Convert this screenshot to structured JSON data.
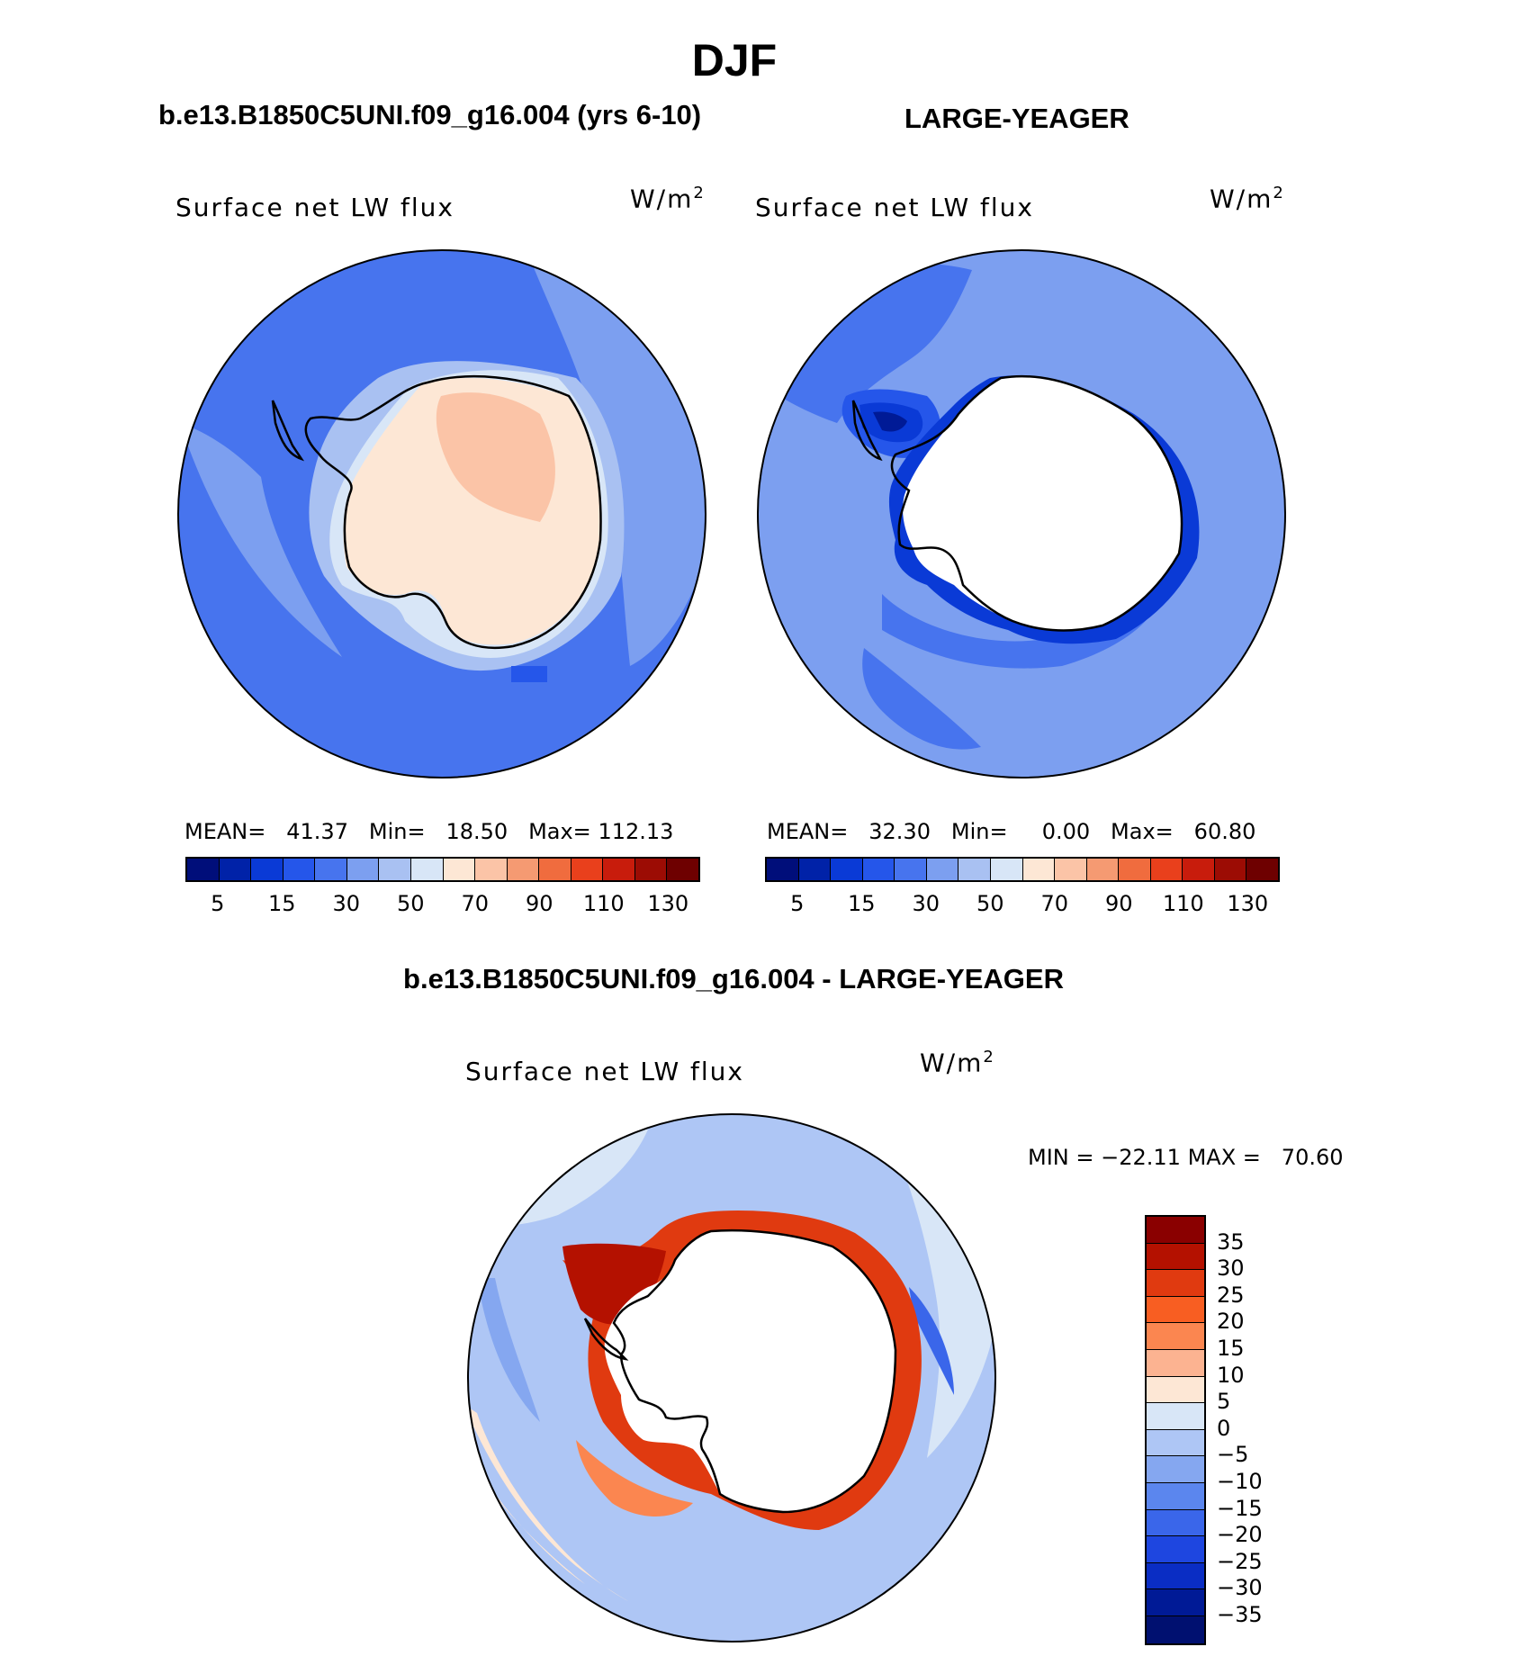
{
  "figure": {
    "title": "DJF"
  },
  "panels": {
    "left": {
      "title": "b.e13.B1850C5UNI.f09_g16.004 (yrs 6-10)",
      "variable": "Surface net LW flux",
      "units": "W/m",
      "units_exp": "2",
      "mean_label": "MEAN=",
      "mean_value": "41.37",
      "min_label": "Min=",
      "min_value": "18.50",
      "max_label": "Max=",
      "max_value": "112.13"
    },
    "right": {
      "title": "LARGE-YEAGER",
      "variable": "Surface net LW flux",
      "units": "W/m",
      "units_exp": "2",
      "mean_label": "MEAN=",
      "mean_value": "32.30",
      "min_label": "Min=",
      "min_value": "0.00",
      "max_label": "Max=",
      "max_value": "60.80"
    },
    "diff": {
      "title": "b.e13.B1850C5UNI.f09_g16.004 - LARGE-YEAGER",
      "variable": "Surface net LW flux",
      "units": "W/m",
      "units_exp": "2",
      "min_label": "MIN =",
      "min_value": "−22.11",
      "max_label": "MAX =",
      "max_value": "70.60"
    }
  },
  "abs_colorbar": {
    "colors": [
      "#000e7a",
      "#0022a8",
      "#0a3ad6",
      "#2556ea",
      "#4774ee",
      "#7c9ff0",
      "#a9c1f2",
      "#d8e6f7",
      "#fde7d5",
      "#fbc4a7",
      "#f59a72",
      "#f06c3e",
      "#e9401c",
      "#c81c0c",
      "#9c0c04",
      "#6e0000"
    ],
    "tick_labels": [
      "5",
      "15",
      "30",
      "50",
      "70",
      "90",
      "110",
      "130"
    ]
  },
  "diff_colorbar": {
    "colors": [
      "#8a0000",
      "#b41100",
      "#e03a10",
      "#f85e22",
      "#fb8650",
      "#fcb391",
      "#fde7d5",
      "#d8e6f7",
      "#aec6f5",
      "#85a7f0",
      "#5b86ee",
      "#3a66ea",
      "#1e46e0",
      "#0a2dc4",
      "#001a96",
      "#001070"
    ],
    "tick_labels": [
      "35",
      "30",
      "25",
      "20",
      "15",
      "10",
      "5",
      "0",
      "−5",
      "−10",
      "−15",
      "−20",
      "−25",
      "−30",
      "−35"
    ]
  },
  "chart_data": [
    {
      "type": "map",
      "title": "b.e13.B1850C5UNI.f09_g16.004 (yrs 6-10)",
      "projection": "south-polar stereographic",
      "variable": "Surface net LW flux",
      "units": "W/m2",
      "mean": 41.37,
      "min": 18.5,
      "max": 112.13,
      "levels": [
        5,
        10,
        15,
        20,
        30,
        40,
        50,
        60,
        70,
        80,
        90,
        100,
        110,
        120,
        130
      ]
    },
    {
      "type": "map",
      "title": "LARGE-YEAGER",
      "projection": "south-polar stereographic",
      "variable": "Surface net LW flux",
      "units": "W/m2",
      "mean": 32.3,
      "min": 0.0,
      "max": 60.8,
      "levels": [
        5,
        10,
        15,
        20,
        30,
        40,
        50,
        60,
        70,
        80,
        90,
        100,
        110,
        120,
        130
      ]
    },
    {
      "type": "map",
      "title": "b.e13.B1850C5UNI.f09_g16.004 - LARGE-YEAGER",
      "projection": "south-polar stereographic",
      "variable": "Surface net LW flux",
      "units": "W/m2",
      "min": -22.11,
      "max": 70.6,
      "levels": [
        -35,
        -30,
        -25,
        -20,
        -15,
        -10,
        -5,
        0,
        5,
        10,
        15,
        20,
        25,
        30,
        35
      ]
    }
  ]
}
